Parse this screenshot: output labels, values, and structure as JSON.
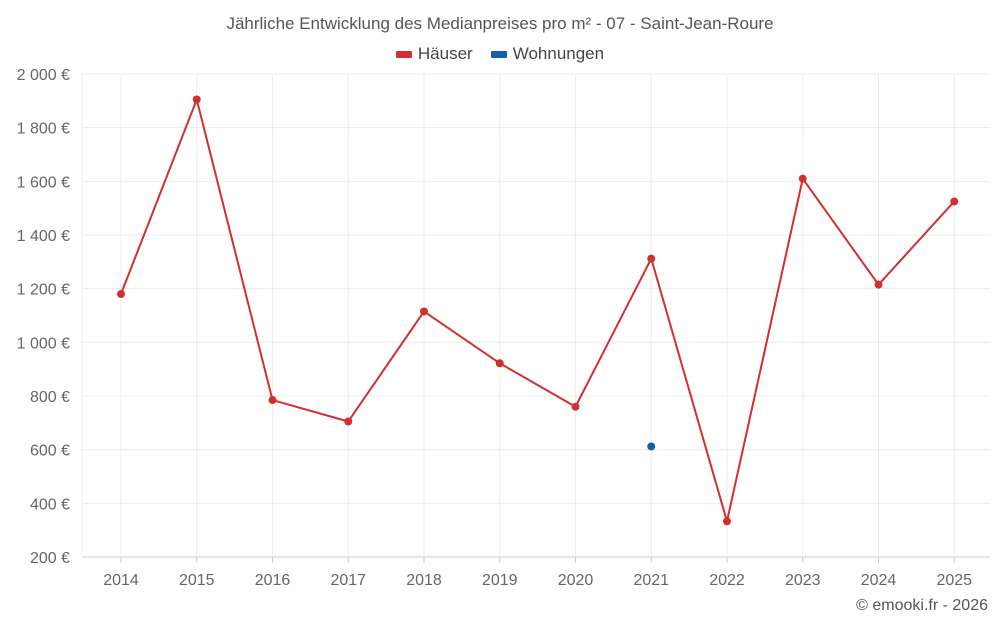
{
  "chart_data": {
    "type": "line",
    "title": "Jährliche Entwicklung des Medianpreises pro m² - 07 - Saint-Jean-Roure",
    "categories": [
      "2014",
      "2015",
      "2016",
      "2017",
      "2018",
      "2019",
      "2020",
      "2021",
      "2022",
      "2023",
      "2024",
      "2025"
    ],
    "series": [
      {
        "name": "Häuser",
        "color": "#d32f2f",
        "values": [
          1180,
          1905,
          785,
          705,
          1115,
          922,
          760,
          1312,
          333,
          1610,
          1215,
          1525
        ]
      },
      {
        "name": "Wohnungen",
        "color": "#0d62a8",
        "values": [
          null,
          null,
          null,
          null,
          null,
          null,
          null,
          612,
          null,
          null,
          null,
          null
        ]
      }
    ],
    "ylim": [
      200,
      2000
    ],
    "yticks": [
      200,
      400,
      600,
      800,
      1000,
      1200,
      1400,
      1600,
      1800,
      2000
    ],
    "ytick_labels": [
      "200 €",
      "400 €",
      "600 €",
      "800 €",
      "1 000 €",
      "1 200 €",
      "1 400 €",
      "1 600 €",
      "1 800 €",
      "2 000 €"
    ],
    "grid": true,
    "legend_position": "top-center",
    "xlabel": "",
    "ylabel": ""
  },
  "footer": {
    "copyright": "© emooki.fr - 2026"
  }
}
